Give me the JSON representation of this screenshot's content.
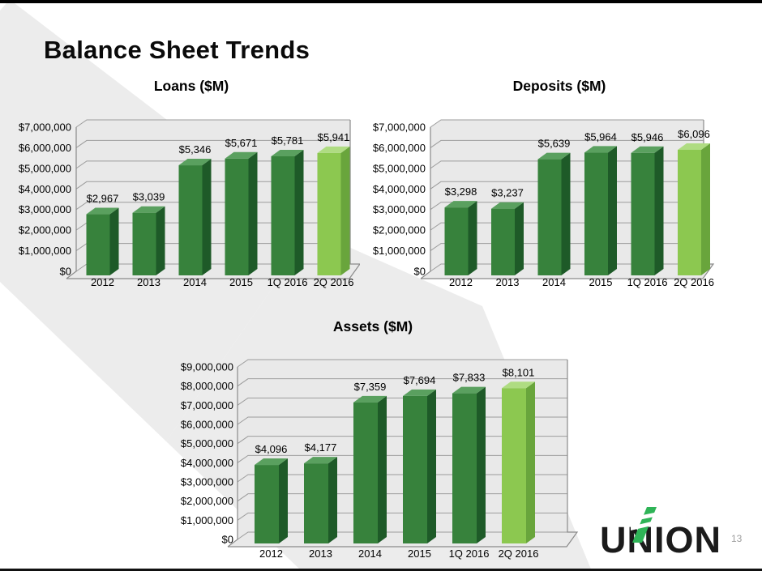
{
  "slide": {
    "title": "Balance Sheet Trends",
    "page_number": "13"
  },
  "logo": {
    "text": "UNION"
  },
  "colors": {
    "bar_green_front": "#37823C",
    "bar_green_side": "#1E5A28",
    "bar_green_top": "#5AA05F",
    "bar_highlight_front": "#8CC850",
    "bar_highlight_side": "#69A53C",
    "bar_highlight_top": "#AFDC82",
    "wall_fill": "#E9E9E9",
    "gridline": "#9C9C9C",
    "frame": "#8A8A8A",
    "background_band": "#ECECEC",
    "top_bar": "#000000",
    "logo_green": "#2FB457",
    "logo_text": "#1B1B1B",
    "label_text": "#000000",
    "page_number_text": "#9E9E9E"
  },
  "chart_data": [
    {
      "type": "bar",
      "title": "Loans ($M)",
      "categories": [
        "2012",
        "2013",
        "2014",
        "2015",
        "1Q 2016",
        "2Q 2016"
      ],
      "values": [
        2967,
        3039,
        5346,
        5671,
        5781,
        5941
      ],
      "data_labels": [
        "$2,967",
        "$3,039",
        "$5,346",
        "$5,671",
        "$5,781",
        "$5,941"
      ],
      "ylim": [
        0,
        7000000
      ],
      "ytick_step": 1000000,
      "ytick_labels": [
        "$7,000,000",
        "$6,000,000",
        "$5,000,000",
        "$4,000,000",
        "$3,000,000",
        "$2,000,000",
        "$1,000,000",
        "$0"
      ],
      "grid": true,
      "legend": "none",
      "style_3d": true,
      "highlight_last_bar": true,
      "value_axis_units_per_tick": 1000
    },
    {
      "type": "bar",
      "title": "Deposits ($M)",
      "categories": [
        "2012",
        "2013",
        "2014",
        "2015",
        "1Q 2016",
        "2Q 2016"
      ],
      "values": [
        3298,
        3237,
        5639,
        5964,
        5946,
        6096
      ],
      "data_labels": [
        "$3,298",
        "$3,237",
        "$5,639",
        "$5,964",
        "$5,946",
        "$6,096"
      ],
      "ylim": [
        0,
        7000000
      ],
      "ytick_step": 1000000,
      "ytick_labels": [
        "$7,000,000",
        "$6,000,000",
        "$5,000,000",
        "$4,000,000",
        "$3,000,000",
        "$2,000,000",
        "$1,000,000",
        "$0"
      ],
      "grid": true,
      "legend": "none",
      "style_3d": true,
      "highlight_last_bar": true,
      "value_axis_units_per_tick": 1000
    },
    {
      "type": "bar",
      "title": "Assets ($M)",
      "categories": [
        "2012",
        "2013",
        "2014",
        "2015",
        "1Q 2016",
        "2Q 2016"
      ],
      "values": [
        4096,
        4177,
        7359,
        7694,
        7833,
        8101
      ],
      "data_labels": [
        "$4,096",
        "$4,177",
        "$7,359",
        "$7,694",
        "$7,833",
        "$8,101"
      ],
      "ylim": [
        0,
        9000000
      ],
      "ytick_step": 1000000,
      "ytick_labels": [
        "$9,000,000",
        "$8,000,000",
        "$7,000,000",
        "$6,000,000",
        "$5,000,000",
        "$4,000,000",
        "$3,000,000",
        "$2,000,000",
        "$1,000,000",
        "$0"
      ],
      "grid": true,
      "legend": "none",
      "style_3d": true,
      "highlight_last_bar": true,
      "value_axis_units_per_tick": 1000
    }
  ]
}
